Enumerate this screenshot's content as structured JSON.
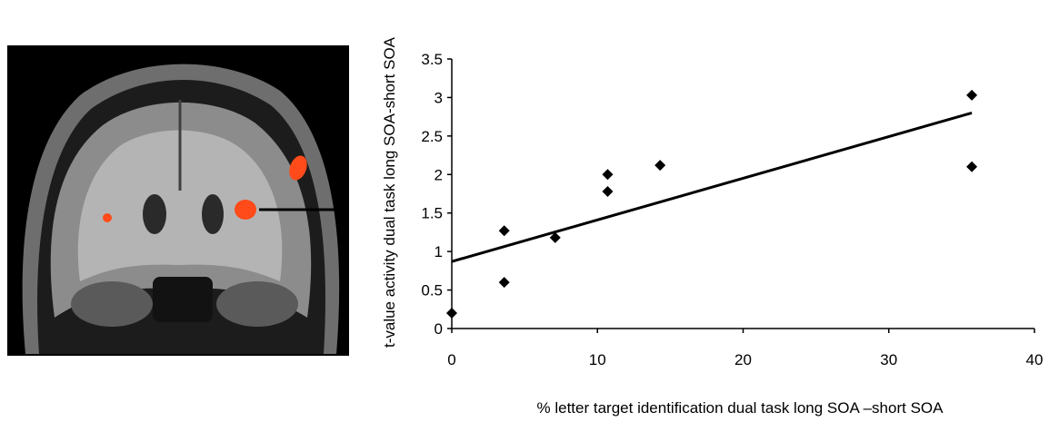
{
  "chart_data": {
    "type": "scatter",
    "xlabel": "% letter target identification dual task long SOA –short SOA",
    "ylabel": "t-value activity dual task long SOA-short SOA",
    "xlim": [
      0,
      40
    ],
    "ylim": [
      0,
      3.5
    ],
    "x_ticks": [
      0,
      10,
      20,
      30,
      40
    ],
    "y_ticks": [
      0,
      0.5,
      1,
      1.5,
      2,
      2.5,
      3,
      3.5
    ],
    "x_tick_labels": [
      "0",
      "10",
      "20",
      "30",
      "40"
    ],
    "y_tick_labels": [
      "0",
      "0.5",
      "1",
      "1.5",
      "2",
      "2.5",
      "3",
      "3.5"
    ],
    "points": [
      {
        "x": 0,
        "y": 0.2
      },
      {
        "x": 3.6,
        "y": 1.27
      },
      {
        "x": 3.6,
        "y": 0.6
      },
      {
        "x": 7.1,
        "y": 1.18
      },
      {
        "x": 10.7,
        "y": 2.0
      },
      {
        "x": 10.7,
        "y": 1.78
      },
      {
        "x": 14.3,
        "y": 2.12
      },
      {
        "x": 35.7,
        "y": 3.03
      },
      {
        "x": 35.7,
        "y": 2.1
      }
    ],
    "trendline": {
      "x_start": 0,
      "y_start": 0.87,
      "x_end": 35.7,
      "y_end": 2.8
    },
    "marker": "diamond",
    "marker_color": "#000000",
    "grid": false,
    "legend": "none"
  },
  "brain_image": {
    "description_icon": "coronal-mri-slice-icon",
    "activation_color": "#ff4a1a"
  }
}
